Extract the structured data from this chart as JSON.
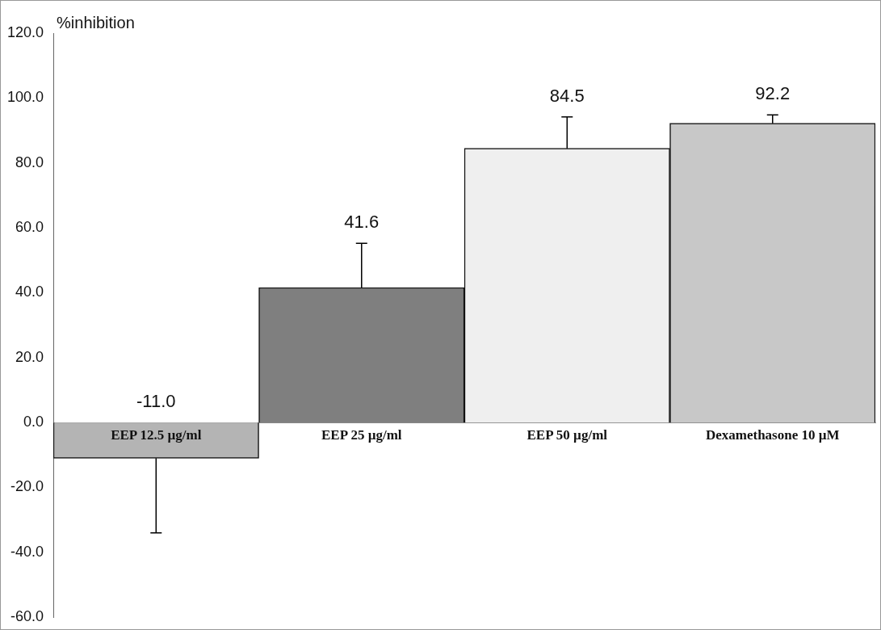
{
  "chart_data": {
    "type": "bar",
    "ylabel": "%inhibition",
    "categories": [
      "EEP 12.5 µg/ml",
      "EEP 25 µg/ml",
      "EEP 50 µg/ml",
      "Dexamethasone 10 µM"
    ],
    "values": [
      -11.0,
      41.6,
      84.5,
      92.2
    ],
    "value_labels": [
      "-11.0",
      "41.6",
      "84.5",
      "92.2"
    ],
    "colors": [
      "#b4b4b4",
      "#7f7f7f",
      "#efefef",
      "#c8c8c8"
    ],
    "errors": [
      [
        -34.0,
        -11.0
      ],
      [
        41.6,
        55.2
      ],
      [
        84.5,
        94.2
      ],
      [
        92.2,
        94.8
      ]
    ],
    "ylim": [
      -60,
      120
    ],
    "yticks": [
      {
        "value": -60,
        "label": "-60.0"
      },
      {
        "value": -40,
        "label": "-40.0"
      },
      {
        "value": -20,
        "label": "-20.0"
      },
      {
        "value": 0,
        "label": "0.0"
      },
      {
        "value": 20,
        "label": "20.0"
      },
      {
        "value": 40,
        "label": "40.0"
      },
      {
        "value": 60,
        "label": "60.0"
      },
      {
        "value": 80,
        "label": "80.0"
      },
      {
        "value": 100,
        "label": "100.0"
      },
      {
        "value": 120,
        "label": "120.0"
      }
    ],
    "grid": false,
    "legend": false
  }
}
